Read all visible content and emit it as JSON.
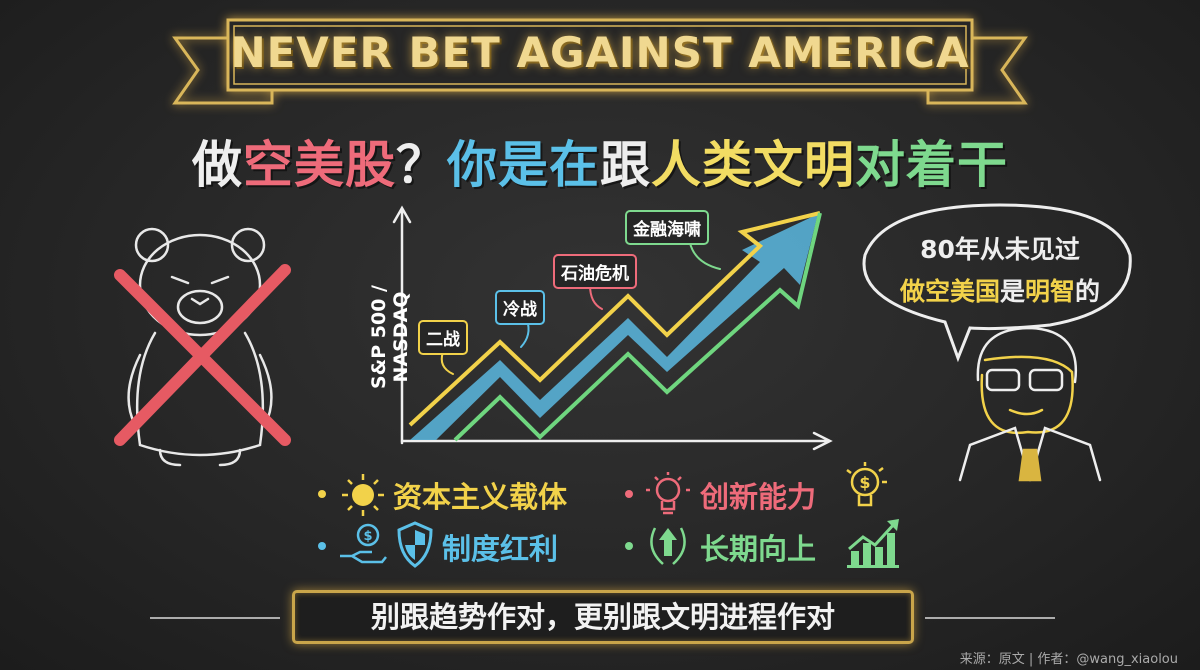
{
  "banner": {
    "title": "NEVER BET AGAINST AMERICA"
  },
  "headline": {
    "parts": [
      {
        "text": "做",
        "color": "#eeeeee"
      },
      {
        "text": "空美股",
        "color": "#ee6b7a"
      },
      {
        "text": "？",
        "color": "#eeeeee"
      },
      {
        "text": "你是在",
        "color": "#5bc0e8"
      },
      {
        "text": "跟",
        "color": "#eeeeee"
      },
      {
        "text": "人类文明",
        "color": "#f2dc63"
      },
      {
        "text": "对着干",
        "color": "#7ed98e"
      }
    ]
  },
  "chart": {
    "y_axis_label": "S&P 500 / NASDAQ",
    "events": [
      {
        "label": "二战",
        "color": "#f2d24a"
      },
      {
        "label": "冷战",
        "color": "#5bc0e8"
      },
      {
        "label": "石油危机",
        "color": "#ee6b7a"
      },
      {
        "label": "金融海啸",
        "color": "#7ed98e"
      }
    ],
    "trend": "up"
  },
  "speech_bubble": {
    "line1": "80年从未见过",
    "line2_parts": [
      {
        "text": "做空美国",
        "color": "#f2d24a"
      },
      {
        "text": "是",
        "color": "#eeeeee"
      },
      {
        "text": "明智",
        "color": "#f2d24a"
      },
      {
        "text": "的",
        "color": "#eeeeee"
      }
    ]
  },
  "bullets": [
    {
      "text": "资本主义载体",
      "color": "#f2d24a",
      "icon": "sun-icon"
    },
    {
      "text": "创新能力",
      "color": "#ee6b7a",
      "icon": "lightbulb-icon"
    },
    {
      "text": "制度红利",
      "color": "#5bc0e8",
      "icon": "shield-icon"
    },
    {
      "text": "长期向上",
      "color": "#7ed98e",
      "icon": "growth-chart-icon"
    }
  ],
  "footer": {
    "slogan": "别跟趋势作对，更别跟文明进程作对",
    "source": "来源：原文 | 作者：@wang_xiaolou"
  },
  "colors": {
    "board": "#272727",
    "gold": "#e6c46a",
    "red_x": "#e65a63"
  }
}
